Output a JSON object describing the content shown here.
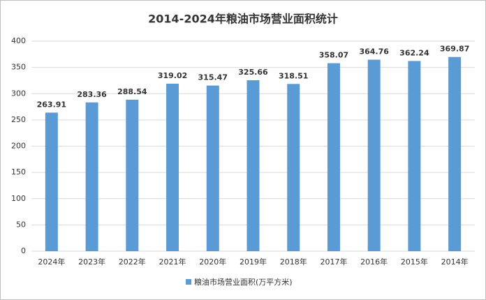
{
  "chart_data": {
    "type": "bar",
    "title": "2014-2024年粮油市场营业面积统计",
    "categories": [
      "2024年",
      "2023年",
      "2022年",
      "2021年",
      "2020年",
      "2019年",
      "2018年",
      "2017年",
      "2016年",
      "2015年",
      "2014年"
    ],
    "series": [
      {
        "name": "粮油市场营业面积(万平方米)",
        "color": "#5b9bd5",
        "values": [
          263.91,
          283.36,
          288.54,
          319.02,
          315.47,
          325.66,
          318.51,
          358.07,
          364.76,
          362.24,
          369.87
        ]
      }
    ],
    "ylim": [
      0,
      400
    ],
    "yticks": [
      0,
      50,
      100,
      150,
      200,
      250,
      300,
      350,
      400
    ],
    "grid": true,
    "legend": "bottom"
  }
}
